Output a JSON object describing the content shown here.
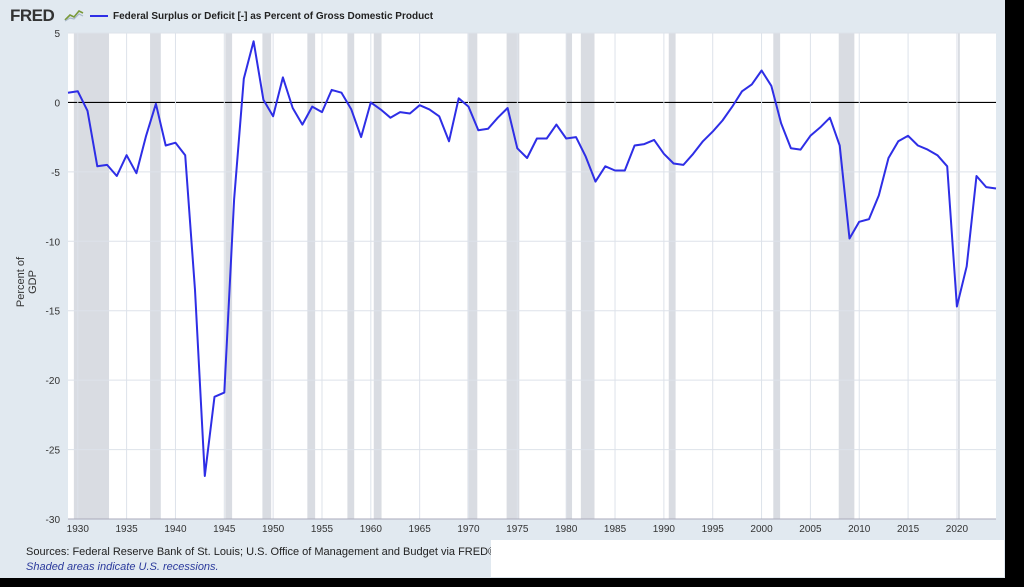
{
  "header": {
    "logo_text": "FRED",
    "logo_icon": "chart-line-icon"
  },
  "footer": {
    "sources": "Sources: Federal Reserve Bank of St. Louis; U.S. Office of Management and Budget via FRED®",
    "note": "Shaded areas indicate U.S. recessions."
  },
  "colors": {
    "series": "#2e2ee6",
    "recession": "#d9dce2",
    "background": "#e1e9f0",
    "plot": "#ffffff"
  },
  "chart_data": {
    "type": "line",
    "title": "",
    "xlabel": "",
    "ylabel": "Percent of GDP",
    "xlim": [
      1929,
      2024
    ],
    "ylim": [
      -30,
      5
    ],
    "grid": true,
    "legend_position": "top-left",
    "x_ticks": [
      1930,
      1935,
      1940,
      1945,
      1950,
      1955,
      1960,
      1965,
      1970,
      1975,
      1980,
      1985,
      1990,
      1995,
      2000,
      2005,
      2010,
      2015,
      2020
    ],
    "y_ticks": [
      5,
      0,
      -5,
      -10,
      -15,
      -20,
      -25,
      -30
    ],
    "recessions": [
      [
        1929.6,
        1933.2
      ],
      [
        1937.4,
        1938.5
      ],
      [
        1945.1,
        1945.8
      ],
      [
        1948.9,
        1949.8
      ],
      [
        1953.5,
        1954.3
      ],
      [
        1957.6,
        1958.3
      ],
      [
        1960.3,
        1961.1
      ],
      [
        1969.9,
        1970.9
      ],
      [
        1973.9,
        1975.2
      ],
      [
        1980.0,
        1980.6
      ],
      [
        1981.5,
        1982.9
      ],
      [
        1990.5,
        1991.2
      ],
      [
        2001.2,
        2001.9
      ],
      [
        2007.9,
        2009.5
      ],
      [
        2020.1,
        2020.3
      ]
    ],
    "series": [
      {
        "name": "Federal Surplus or Deficit [-] as Percent of Gross Domestic Product",
        "x": [
          1929,
          1930,
          1931,
          1932,
          1933,
          1934,
          1935,
          1936,
          1937,
          1938,
          1939,
          1940,
          1941,
          1942,
          1943,
          1944,
          1945,
          1946,
          1947,
          1948,
          1949,
          1950,
          1951,
          1952,
          1953,
          1954,
          1955,
          1956,
          1957,
          1958,
          1959,
          1960,
          1961,
          1962,
          1963,
          1964,
          1965,
          1966,
          1967,
          1968,
          1969,
          1970,
          1971,
          1972,
          1973,
          1974,
          1975,
          1976,
          1977,
          1978,
          1979,
          1980,
          1981,
          1982,
          1983,
          1984,
          1985,
          1986,
          1987,
          1988,
          1989,
          1990,
          1991,
          1992,
          1993,
          1994,
          1995,
          1996,
          1997,
          1998,
          1999,
          2000,
          2001,
          2002,
          2003,
          2004,
          2005,
          2006,
          2007,
          2008,
          2009,
          2010,
          2011,
          2012,
          2013,
          2014,
          2015,
          2016,
          2017,
          2018,
          2019,
          2020,
          2021,
          2022,
          2023,
          2024
        ],
        "values": [
          0.7,
          0.8,
          -0.6,
          -4.6,
          -4.5,
          -5.3,
          -3.8,
          -5.1,
          -2.4,
          -0.1,
          -3.1,
          -2.9,
          -3.8,
          -13.5,
          -26.9,
          -21.2,
          -20.9,
          -7.0,
          1.7,
          4.4,
          0.2,
          -1.0,
          1.8,
          -0.4,
          -1.6,
          -0.3,
          -0.7,
          0.9,
          0.7,
          -0.5,
          -2.5,
          0.0,
          -0.5,
          -1.1,
          -0.7,
          -0.8,
          -0.2,
          -0.5,
          -1.0,
          -2.8,
          0.3,
          -0.3,
          -2.0,
          -1.9,
          -1.1,
          -0.4,
          -3.3,
          -4.0,
          -2.6,
          -2.6,
          -1.6,
          -2.6,
          -2.5,
          -3.9,
          -5.7,
          -4.6,
          -4.9,
          -4.9,
          -3.1,
          -3.0,
          -2.7,
          -3.7,
          -4.4,
          -4.5,
          -3.7,
          -2.8,
          -2.1,
          -1.3,
          -0.3,
          0.8,
          1.3,
          2.3,
          1.2,
          -1.5,
          -3.3,
          -3.4,
          -2.4,
          -1.8,
          -1.1,
          -3.1,
          -9.8,
          -8.6,
          -8.4,
          -6.7,
          -4.0,
          -2.8,
          -2.4,
          -3.1,
          -3.4,
          -3.8,
          -4.6,
          -14.7,
          -11.8,
          -5.3,
          -6.1,
          -6.2
        ]
      }
    ]
  }
}
